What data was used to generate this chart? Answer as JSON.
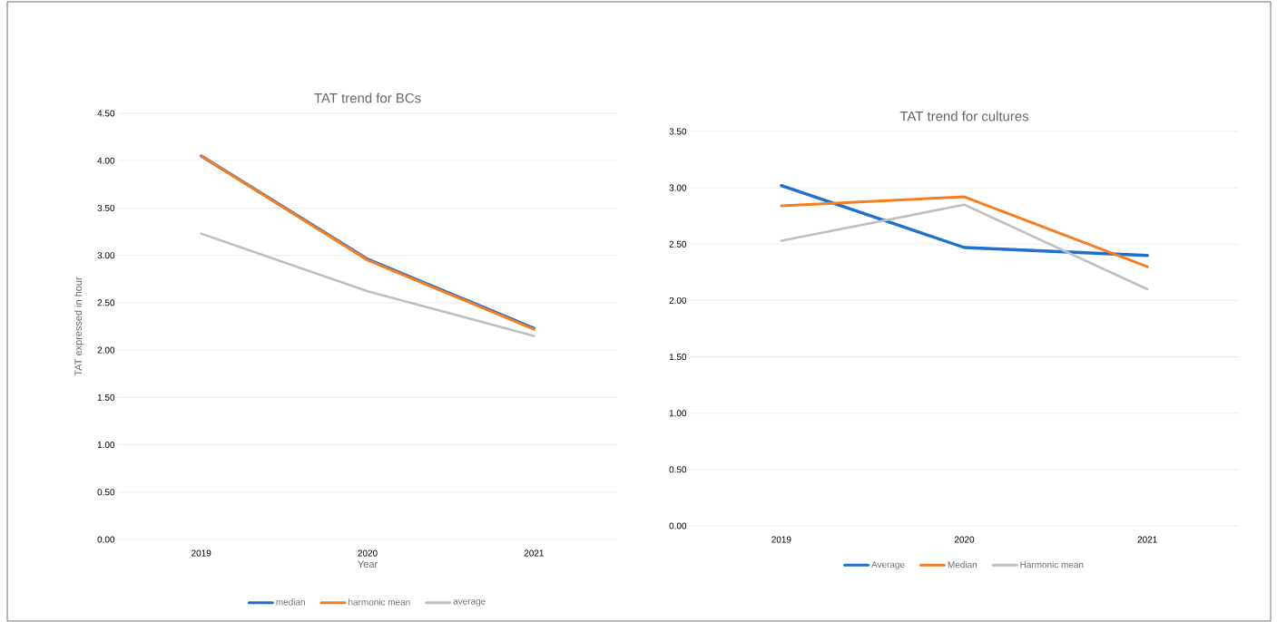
{
  "chart_data": [
    {
      "type": "line",
      "title": "TAT trend for BCs",
      "xlabel": "Year",
      "ylabel": "TAT expressed in hour",
      "categories": [
        "2019",
        "2020",
        "2021"
      ],
      "series": [
        {
          "name": "median",
          "color": "#1f6fcf",
          "values": [
            4.05,
            2.96,
            2.23
          ]
        },
        {
          "name": "harmonic mean",
          "color": "#f57d22",
          "values": [
            4.05,
            2.95,
            2.22
          ]
        },
        {
          "name": "average",
          "color": "#bfbfbf",
          "values": [
            3.23,
            2.62,
            2.15
          ]
        }
      ],
      "ylim": [
        0,
        4.5
      ],
      "yticks": [
        {
          "value": 0,
          "label": "0.00"
        },
        {
          "value": 0.5,
          "label": "0.50"
        },
        {
          "value": 1,
          "label": "1.00"
        },
        {
          "value": 1.5,
          "label": "1.50"
        },
        {
          "value": 2,
          "label": "2.00"
        },
        {
          "value": 2.5,
          "label": "2.50"
        },
        {
          "value": 3,
          "label": "3.00"
        },
        {
          "value": 3.5,
          "label": "3.50"
        },
        {
          "value": 4,
          "label": "4.00"
        },
        {
          "value": 4.5,
          "label": "4.50"
        }
      ],
      "grid": "y",
      "legend": "bottom",
      "marker": "none",
      "line_style": "solid"
    },
    {
      "type": "line",
      "title": "TAT trend for cultures",
      "categories": [
        "2019",
        "2020",
        "2021"
      ],
      "series": [
        {
          "name": "Average",
          "color": "#1f6fcf",
          "values": [
            3.02,
            2.47,
            2.4
          ]
        },
        {
          "name": "Median",
          "color": "#f57d22",
          "values": [
            2.84,
            2.92,
            2.3
          ]
        },
        {
          "name": "Harmonic mean",
          "color": "#bfbfbf",
          "values": [
            2.53,
            2.85,
            2.1
          ]
        }
      ],
      "ylim": [
        0,
        3.5
      ],
      "yticks": [
        {
          "value": 0,
          "label": "0.00"
        },
        {
          "value": 0.5,
          "label": "0.50"
        },
        {
          "value": 1,
          "label": "1.00"
        },
        {
          "value": 1.5,
          "label": "1.50"
        },
        {
          "value": 2,
          "label": "2.00"
        },
        {
          "value": 2.5,
          "label": "2.50"
        },
        {
          "value": 3,
          "label": "3.00"
        },
        {
          "value": 3.5,
          "label": "3.50"
        }
      ],
      "grid": "y",
      "legend": "bottom",
      "marker": "none",
      "line_style": "solid"
    }
  ]
}
